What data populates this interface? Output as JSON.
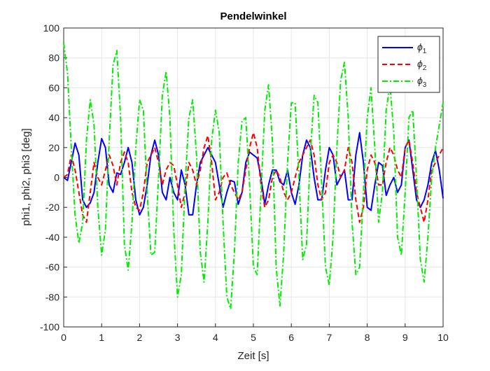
{
  "chart_data": {
    "type": "line",
    "title": "Pendelwinkel",
    "x_label": "Zeit [s]",
    "y_label": "phi1, phi2, phi3 [deg]",
    "x": [
      0,
      0.1,
      0.2,
      0.3,
      0.4,
      0.5,
      0.6,
      0.7,
      0.8,
      0.9,
      1,
      1.1,
      1.2,
      1.3,
      1.4,
      1.5,
      1.6,
      1.7,
      1.8,
      1.9,
      2,
      2.1,
      2.2,
      2.3,
      2.4,
      2.5,
      2.6,
      2.7,
      2.8,
      2.9,
      3,
      3.1,
      3.2,
      3.3,
      3.4,
      3.5,
      3.6,
      3.7,
      3.8,
      3.9,
      4,
      4.1,
      4.2,
      4.3,
      4.4,
      4.5,
      4.6,
      4.7,
      4.8,
      4.9,
      5,
      5.1,
      5.2,
      5.3,
      5.4,
      5.5,
      5.6,
      5.7,
      5.8,
      5.9,
      6,
      6.1,
      6.2,
      6.3,
      6.4,
      6.5,
      6.6,
      6.7,
      6.8,
      6.9,
      7,
      7.1,
      7.2,
      7.3,
      7.4,
      7.5,
      7.6,
      7.7,
      7.8,
      7.9,
      8,
      8.1,
      8.2,
      8.3,
      8.4,
      8.5,
      8.6,
      8.7,
      8.8,
      8.9,
      9,
      9.1,
      9.2,
      9.3,
      9.4,
      9.5,
      9.6,
      9.7,
      9.8,
      9.9,
      10
    ],
    "series": [
      {
        "name": "ϕ1",
        "color": "#0000ff",
        "linestyle": "-",
        "values": [
          0,
          -2,
          10,
          23,
          15,
          -15,
          -20,
          -17,
          -10,
          10,
          26,
          20,
          -5,
          -10,
          3,
          2,
          10,
          20,
          10,
          -15,
          -25,
          -20,
          -5,
          15,
          25,
          15,
          -10,
          -15,
          0,
          -10,
          -15,
          5,
          -5,
          -25,
          -25,
          -5,
          10,
          15,
          20,
          15,
          10,
          -5,
          -20,
          -10,
          -2,
          -3,
          -18,
          -10,
          10,
          17,
          15,
          13,
          0,
          -18,
          -5,
          5,
          5,
          -3,
          -5,
          5,
          -10,
          -18,
          -5,
          15,
          25,
          20,
          0,
          -15,
          -15,
          5,
          20,
          15,
          -5,
          0,
          5,
          -15,
          -15,
          15,
          30,
          10,
          -20,
          -22,
          -5,
          10,
          8,
          -12,
          -5,
          0,
          -10,
          -5,
          20,
          25,
          5,
          -15,
          -20,
          -15,
          -5,
          10,
          18,
          5,
          -14
        ]
      },
      {
        "name": "ϕ2",
        "color": "#ff0000",
        "linestyle": "--",
        "values": [
          0,
          2,
          15,
          5,
          -10,
          -25,
          -30,
          -10,
          10,
          0,
          -5,
          5,
          15,
          8,
          -5,
          10,
          17,
          10,
          -10,
          -20,
          -22,
          -10,
          10,
          15,
          20,
          10,
          -5,
          5,
          10,
          8,
          -5,
          -20,
          -10,
          10,
          5,
          -5,
          5,
          20,
          28,
          10,
          -15,
          -10,
          0,
          3,
          -5,
          -10,
          -15,
          -10,
          5,
          20,
          30,
          20,
          -5,
          -20,
          -15,
          0,
          5,
          0,
          -10,
          -15,
          -10,
          0,
          10,
          15,
          20,
          25,
          15,
          -5,
          -15,
          -10,
          10,
          15,
          10,
          0,
          5,
          20,
          10,
          -15,
          -30,
          -20,
          5,
          15,
          10,
          -5,
          -5,
          10,
          20,
          15,
          5,
          0,
          20,
          25,
          10,
          -10,
          -20,
          -30,
          -15,
          5,
          10,
          15,
          20
        ]
      },
      {
        "name": "ϕ3",
        "color": "#00ee00",
        "linestyle": "-.",
        "values": [
          90,
          70,
          20,
          -25,
          -44,
          -30,
          25,
          52,
          35,
          -20,
          -52,
          -35,
          25,
          75,
          85,
          40,
          -45,
          -62,
          -30,
          20,
          52,
          45,
          -10,
          -52,
          -50,
          0,
          55,
          71,
          40,
          -35,
          -80,
          -65,
          -5,
          40,
          52,
          15,
          -50,
          -70,
          -30,
          25,
          45,
          30,
          -30,
          -80,
          -88,
          -50,
          10,
          38,
          40,
          -5,
          -60,
          -65,
          -10,
          45,
          62,
          25,
          -60,
          -86,
          -50,
          10,
          50,
          50,
          0,
          -55,
          -45,
          15,
          55,
          50,
          -5,
          -60,
          -72,
          -40,
          20,
          65,
          77,
          40,
          -30,
          -65,
          -60,
          -10,
          40,
          60,
          20,
          -30,
          -10,
          45,
          62,
          30,
          -40,
          -52,
          -10,
          40,
          45,
          0,
          -55,
          -70,
          -40,
          0,
          20,
          35,
          50
        ]
      }
    ],
    "xlim": [
      0,
      10
    ],
    "xticks": [
      0,
      1,
      2,
      3,
      4,
      5,
      6,
      7,
      8,
      9,
      10
    ],
    "ylim": [
      -100,
      100
    ],
    "yticks": [
      -100,
      -80,
      -60,
      -40,
      -20,
      0,
      20,
      40,
      60,
      80,
      100
    ],
    "grid": true,
    "legend": "northeast"
  }
}
